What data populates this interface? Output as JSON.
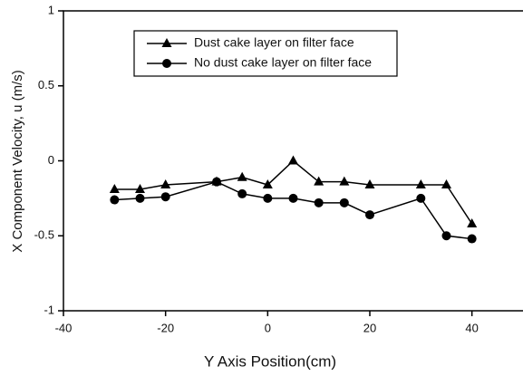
{
  "chart_data": {
    "type": "line",
    "xlabel": "Y Axis Position(cm)",
    "ylabel": "X Component Velocity, u (m/s)",
    "xlim": [
      -40,
      50
    ],
    "xticks": [
      -40,
      -20,
      0,
      20,
      40
    ],
    "ylim": [
      -1,
      1
    ],
    "yticks": [
      -1,
      -0.5,
      0,
      0.5,
      1
    ],
    "legend": "upper center",
    "series": [
      {
        "name": "Dust cake layer on filter face",
        "color": "#000000",
        "marker": "triangle",
        "x": [
          -30,
          -25,
          -20,
          -10,
          -5,
          0,
          5,
          10,
          15,
          20,
          30,
          35,
          40
        ],
        "values": [
          -0.19,
          -0.19,
          -0.16,
          -0.14,
          -0.11,
          -0.16,
          0.0,
          -0.14,
          -0.14,
          -0.16,
          -0.16,
          -0.16,
          -0.42
        ]
      },
      {
        "name": "No dust cake layer on filter face",
        "color": "#000000",
        "marker": "circle",
        "x": [
          -30,
          -25,
          -20,
          -10,
          -5,
          0,
          5,
          10,
          15,
          20,
          30,
          35,
          40
        ],
        "values": [
          -0.26,
          -0.25,
          -0.24,
          -0.14,
          -0.22,
          -0.25,
          -0.25,
          -0.28,
          -0.28,
          -0.36,
          -0.25,
          -0.5,
          -0.52
        ]
      }
    ]
  }
}
